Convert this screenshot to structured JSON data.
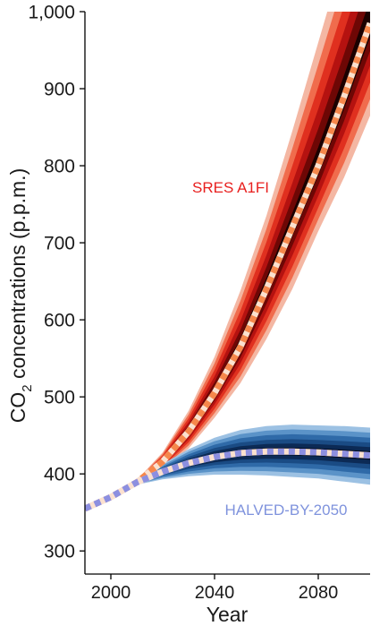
{
  "chart_data": {
    "type": "area",
    "title": "",
    "xlabel": "Year",
    "ylabel": "CO2 concentrations (p.p.m.)",
    "ylabel_parts": {
      "prefix": "CO",
      "subscript": "2",
      "suffix": " concentrations (p.p.m.)"
    },
    "xlim": [
      1990,
      2100
    ],
    "ylim": [
      270,
      1000
    ],
    "x_ticks": [
      2000,
      2040,
      2080
    ],
    "y_ticks": [
      300,
      400,
      500,
      600,
      700,
      800,
      900,
      1000
    ],
    "y_tick_labels": [
      "300",
      "400",
      "500",
      "600",
      "700",
      "800",
      "900",
      "1,000"
    ],
    "grid": false,
    "series": [
      {
        "name": "SRES A1FI",
        "color": "#e8462e",
        "median_color": "#f6874b",
        "x": [
          1990,
          2000,
          2010,
          2020,
          2030,
          2040,
          2050,
          2060,
          2070,
          2080,
          2090,
          2100
        ],
        "median": [
          355,
          370,
          389,
          416,
          455,
          505,
          565,
          640,
          720,
          800,
          890,
          985
        ],
        "lower": [
          355,
          370,
          387,
          406,
          433,
          473,
          518,
          575,
          640,
          715,
          785,
          865
        ],
        "upper": [
          355,
          370,
          392,
          428,
          482,
          552,
          638,
          735,
          845,
          960,
          1075,
          1190
        ]
      },
      {
        "name": "HALVED-BY-2050",
        "color": "#2f6aa8",
        "median_color": "#8c8fe0",
        "x": [
          1990,
          2000,
          2010,
          2020,
          2030,
          2040,
          2050,
          2060,
          2070,
          2080,
          2090,
          2100
        ],
        "median": [
          355,
          370,
          389,
          403,
          414,
          422,
          427,
          429,
          429,
          428,
          426,
          424
        ],
        "lower": [
          355,
          370,
          386,
          393,
          397,
          399,
          399,
          398,
          396,
          394,
          390,
          386
        ],
        "upper": [
          355,
          370,
          391,
          413,
          432,
          447,
          457,
          462,
          464,
          463,
          462,
          460
        ]
      }
    ]
  }
}
